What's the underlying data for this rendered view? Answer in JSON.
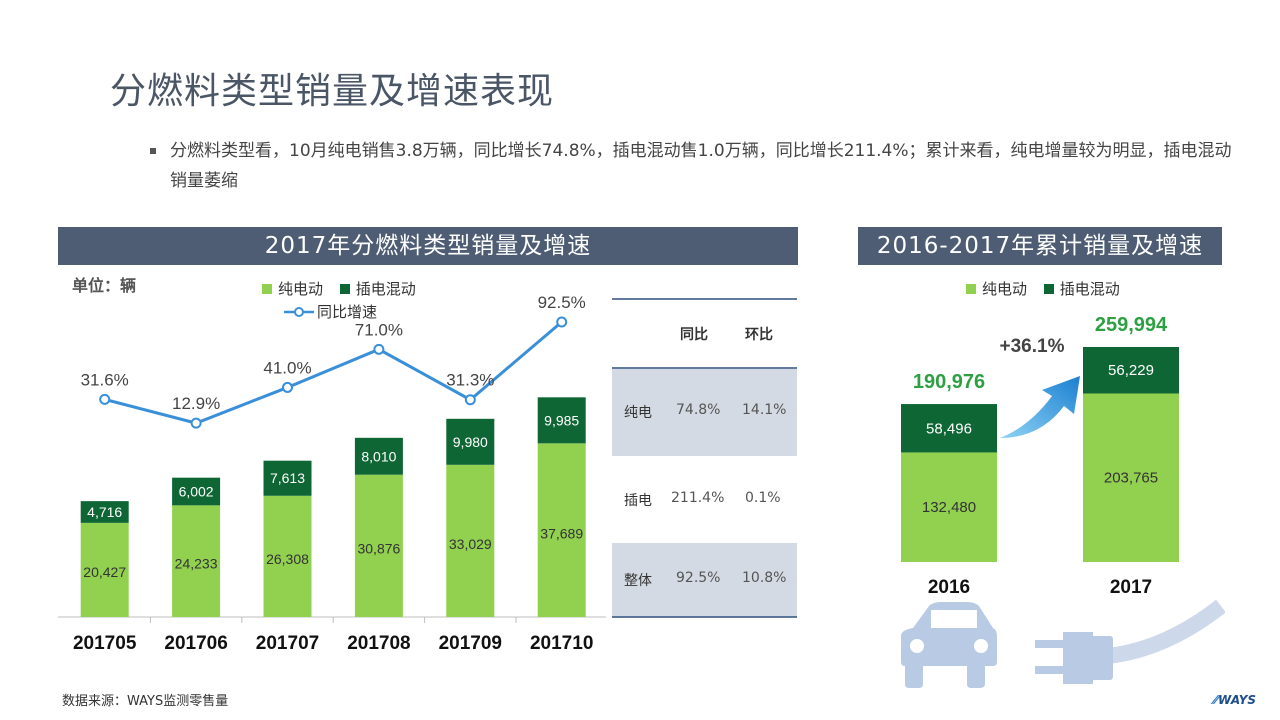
{
  "title": "分燃料类型销量及增速表现",
  "bullet": "分燃料类型看，10月纯电销售3.8万辆，同比增长74.8%，插电混动售1.0万辆，同比增长211.4%；累计来看，纯电增量较为明显，插电混动销量萎缩",
  "left_panel": {
    "header": "2017年分燃料类型销量及增速",
    "unit": "单位：辆",
    "legend": {
      "bev": "纯电动",
      "phev": "插电混动",
      "growth": "同比增速"
    }
  },
  "right_panel": {
    "header": "2016-2017年累计销量及增速",
    "legend": {
      "bev": "纯电动",
      "phev": "插电混动"
    },
    "growth_label": "+36.1%"
  },
  "table": {
    "headers": [
      "同比",
      "环比"
    ],
    "rows": [
      {
        "label": "纯电",
        "yoy": "74.8%",
        "mom": "14.1%"
      },
      {
        "label": "插电",
        "yoy": "211.4%",
        "mom": "0.1%"
      },
      {
        "label": "整体",
        "yoy": "92.5%",
        "mom": "10.8%"
      }
    ]
  },
  "source": "数据来源：WAYS监测零售量",
  "logo": "WAYS",
  "colors": {
    "bev": "#92d050",
    "phev": "#0e6634",
    "line": "#3a8fd9",
    "header_bg": "#4e5d73",
    "total_label": "#2ea043"
  },
  "chart_data": [
    {
      "type": "bar",
      "stacked": true,
      "categories": [
        "201705",
        "201706",
        "201707",
        "201708",
        "201709",
        "201710"
      ],
      "series": [
        {
          "name": "纯电动",
          "values": [
            20427,
            24233,
            26308,
            30876,
            33029,
            37689
          ]
        },
        {
          "name": "插电混动",
          "values": [
            4716,
            6002,
            7613,
            8010,
            9980,
            9985
          ]
        },
        {
          "name": "同比增速",
          "type": "line",
          "values": [
            31.6,
            12.9,
            41.0,
            71.0,
            31.3,
            92.5
          ],
          "labels": [
            "31.6%",
            "12.9%",
            "41.0%",
            "71.0%",
            "31.3%",
            "92.5%"
          ]
        }
      ]
    },
    {
      "type": "bar",
      "stacked": true,
      "categories": [
        "2016",
        "2017"
      ],
      "series": [
        {
          "name": "纯电动",
          "values": [
            132480,
            203765
          ]
        },
        {
          "name": "插电混动",
          "values": [
            58496,
            56229
          ]
        }
      ],
      "totals": [
        "190,976",
        "259,994"
      ]
    }
  ]
}
